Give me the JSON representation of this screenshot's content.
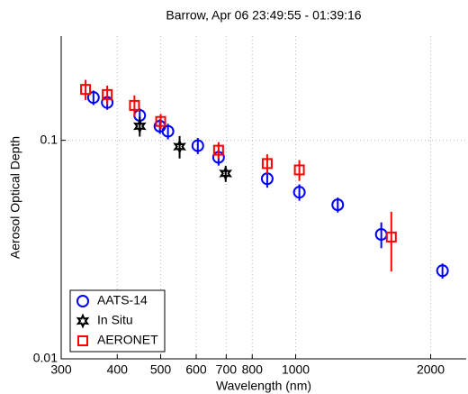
{
  "chart_data": {
    "type": "scatter",
    "title": "Barrow, Apr 06 23:49:55 - 01:39:16",
    "x_label": "Wavelength (nm)",
    "y_label": "Aerosol Optical Depth",
    "xscale": "log",
    "yscale": "log",
    "grid": true,
    "legend": "lower left",
    "xlim": [
      300,
      2400
    ],
    "xticks": [
      300,
      400,
      500,
      600,
      700,
      800,
      1000,
      2000
    ],
    "ylim": [
      0.01,
      0.3
    ],
    "yticks": [
      0.01,
      0.1
    ],
    "series": [
      {
        "name": "AATS-14",
        "color": "#0000ff",
        "marker": "circle",
        "x": [
          354,
          380,
          449,
          498,
          519,
          605,
          673,
          864,
          1019,
          1241,
          1552,
          2125
        ],
        "y": [
          0.157,
          0.149,
          0.13,
          0.116,
          0.11,
          0.0945,
          0.0836,
          0.0667,
          0.0579,
          0.0507,
          0.0371,
          0.0253
        ],
        "errors": [
          0.012,
          0.011,
          0.01,
          0.009,
          0.009,
          0.008,
          0.007,
          0.006,
          0.005,
          0.004,
          0.005,
          0.002
        ]
      },
      {
        "name": "In Situ",
        "color": "#000000",
        "marker": "hexagram",
        "x": [
          449,
          551,
          698
        ],
        "y": [
          0.116,
          0.0936,
          0.0705
        ],
        "errors": [
          0.012,
          0.011,
          0.006
        ]
      },
      {
        "name": "AERONET",
        "color": "#ff0000",
        "marker": "square",
        "x": [
          340,
          380,
          437,
          500,
          673,
          864,
          1019,
          1634
        ],
        "y": [
          0.171,
          0.162,
          0.1445,
          0.122,
          0.0901,
          0.0783,
          0.0732,
          0.0361
        ],
        "errors": [
          0.018,
          0.016,
          0.016,
          0.01,
          0.008,
          0.008,
          0.008,
          0.011
        ]
      }
    ]
  }
}
